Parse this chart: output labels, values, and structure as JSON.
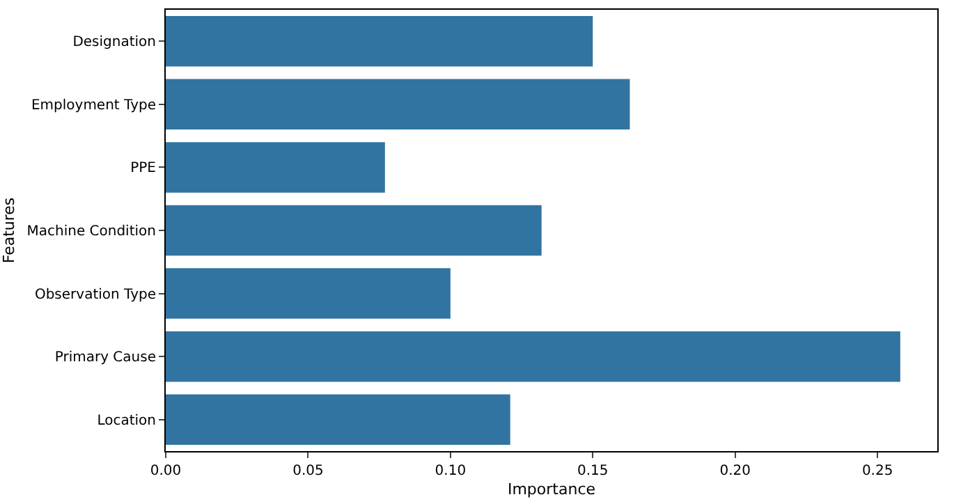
{
  "chart_data": {
    "type": "bar",
    "orientation": "horizontal",
    "xlabel": "Importance",
    "ylabel": "Features",
    "categories": [
      "Designation",
      "Employment Type",
      "PPE",
      "Machine Condition",
      "Observation Type",
      "Primary Cause",
      "Location"
    ],
    "values": [
      0.15,
      0.163,
      0.077,
      0.132,
      0.1,
      0.258,
      0.121
    ],
    "color": "#3274a1",
    "xlim": [
      0,
      0.271
    ],
    "xticks": [
      {
        "value": 0,
        "label": "0.00"
      },
      {
        "value": 0.05,
        "label": "0.05"
      },
      {
        "value": 0.1,
        "label": "0.10"
      },
      {
        "value": 0.15,
        "label": "0.15"
      },
      {
        "value": 0.2,
        "label": "0.20"
      },
      {
        "value": 0.25,
        "label": "0.25"
      }
    ],
    "legend": false
  }
}
